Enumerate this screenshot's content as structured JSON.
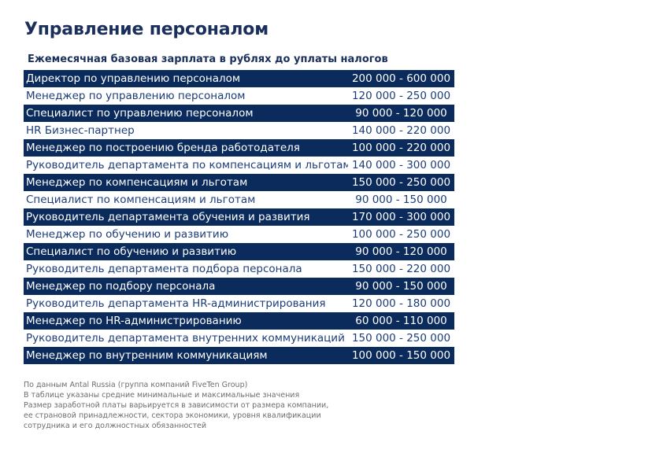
{
  "page": {
    "title": "Управление персоналом"
  },
  "table": {
    "caption": "Ежемесячная базовая зарплата в рублях до уплаты налогов",
    "rows": [
      {
        "position": "Директор по управлению персоналом",
        "range": "200 000 - 600 000"
      },
      {
        "position": "Менеджер по управлению персоналом",
        "range": "120 000 - 250 000"
      },
      {
        "position": "Специалист по управлению персоналом",
        "range": "90 000 - 120 000"
      },
      {
        "position": "HR Бизнес-партнер",
        "range": "140 000 - 220 000"
      },
      {
        "position": "Менеджер по построению бренда работодателя",
        "range": "100 000 - 220 000"
      },
      {
        "position": "Руководитель департамента по компенсациям и льготам",
        "range": "140 000 - 300 000"
      },
      {
        "position": "Менеджер по компенсациям и льготам",
        "range": "150 000 - 250 000"
      },
      {
        "position": "Специалист по компенсациям и льготам",
        "range": "90 000 - 150 000"
      },
      {
        "position": "Руководитель департамента обучения и развития",
        "range": "170 000 - 300 000"
      },
      {
        "position": "Менеджер по обучению и развитию",
        "range": "100 000 - 250 000"
      },
      {
        "position": "Специалист по обучению и развитию",
        "range": "90 000 - 120 000"
      },
      {
        "position": "Руководитель департамента подбора персонала",
        "range": "150 000 - 220 000"
      },
      {
        "position": "Менеджер по подбору персонала",
        "range": "90 000 - 150 000"
      },
      {
        "position": "Руководитель департамента HR-администрирования",
        "range": "120 000 - 180 000"
      },
      {
        "position": "Менеджер по HR-администрированию",
        "range": "60 000 - 110 000"
      },
      {
        "position": "Руководитель департамента внутренних коммуникаций",
        "range": "150 000 - 250 000"
      },
      {
        "position": "Менеджер по внутренним коммуникациям",
        "range": "100 000 - 150 000"
      }
    ]
  },
  "footnotes": [
    "По данным Antal Russia (группа компаний FiveTen Group)",
    "В таблице указаны средние минимальные и максимальные значения",
    "Размер заработной платы варьируется в зависимости от размера компании,",
    "ее страновой принадлежности, сектора экономики, уровня квалификации",
    "сотрудника и его должностных обязанностей"
  ],
  "colors": {
    "title": "#1b2f5c",
    "dark_row_bg": "#0b2b5c",
    "dark_row_text": "#ffffff",
    "light_row_text": "#1c3d78",
    "footnote_text": "#6d6d6d"
  }
}
